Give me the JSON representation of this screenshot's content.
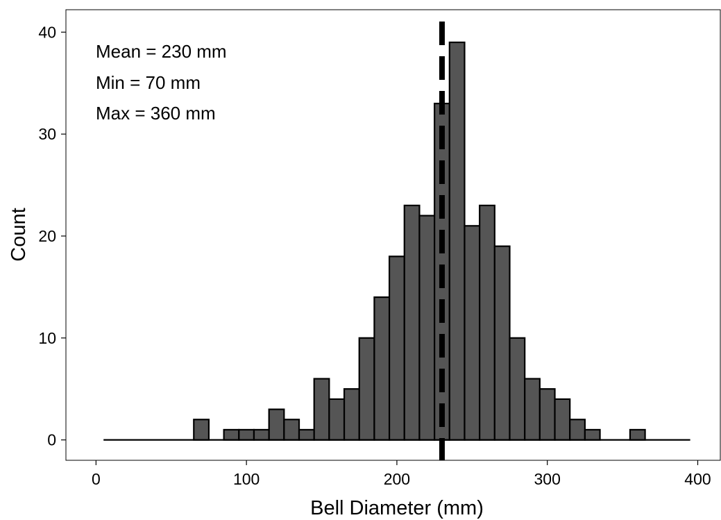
{
  "chart_data": {
    "type": "bar",
    "title": "",
    "xlabel": "Bell Diameter (mm)",
    "ylabel": "Count",
    "xlim": [
      -20,
      415
    ],
    "ylim": [
      -2,
      42.2
    ],
    "xticks": [
      0,
      100,
      200,
      300,
      400
    ],
    "yticks": [
      0,
      10,
      20,
      30,
      40
    ],
    "bin_width": 10,
    "bins": [
      {
        "x": 10,
        "count": 0
      },
      {
        "x": 20,
        "count": 0
      },
      {
        "x": 30,
        "count": 0
      },
      {
        "x": 40,
        "count": 0
      },
      {
        "x": 50,
        "count": 0
      },
      {
        "x": 60,
        "count": 0
      },
      {
        "x": 70,
        "count": 2
      },
      {
        "x": 80,
        "count": 0
      },
      {
        "x": 90,
        "count": 1
      },
      {
        "x": 100,
        "count": 1
      },
      {
        "x": 110,
        "count": 1
      },
      {
        "x": 120,
        "count": 3
      },
      {
        "x": 130,
        "count": 2
      },
      {
        "x": 140,
        "count": 1
      },
      {
        "x": 150,
        "count": 6
      },
      {
        "x": 160,
        "count": 4
      },
      {
        "x": 170,
        "count": 5
      },
      {
        "x": 180,
        "count": 10
      },
      {
        "x": 190,
        "count": 14
      },
      {
        "x": 200,
        "count": 18
      },
      {
        "x": 210,
        "count": 23
      },
      {
        "x": 220,
        "count": 22
      },
      {
        "x": 230,
        "count": 33
      },
      {
        "x": 240,
        "count": 39
      },
      {
        "x": 250,
        "count": 21
      },
      {
        "x": 260,
        "count": 23
      },
      {
        "x": 270,
        "count": 19
      },
      {
        "x": 280,
        "count": 10
      },
      {
        "x": 290,
        "count": 6
      },
      {
        "x": 300,
        "count": 5
      },
      {
        "x": 310,
        "count": 4
      },
      {
        "x": 320,
        "count": 2
      },
      {
        "x": 330,
        "count": 1
      },
      {
        "x": 340,
        "count": 0
      },
      {
        "x": 350,
        "count": 0
      },
      {
        "x": 360,
        "count": 1
      },
      {
        "x": 370,
        "count": 0
      },
      {
        "x": 380,
        "count": 0
      },
      {
        "x": 390,
        "count": 0
      }
    ],
    "mean_line": {
      "x": 230,
      "style": "dashed"
    },
    "annotations": [
      "Mean = 230 mm",
      "Min = 70 mm",
      "Max = 360 mm"
    ],
    "grid": false,
    "legend": "none",
    "colors": {
      "bar_fill": "#555555",
      "bar_stroke": "#000000",
      "line": "#000000",
      "background": "#ffffff"
    }
  }
}
